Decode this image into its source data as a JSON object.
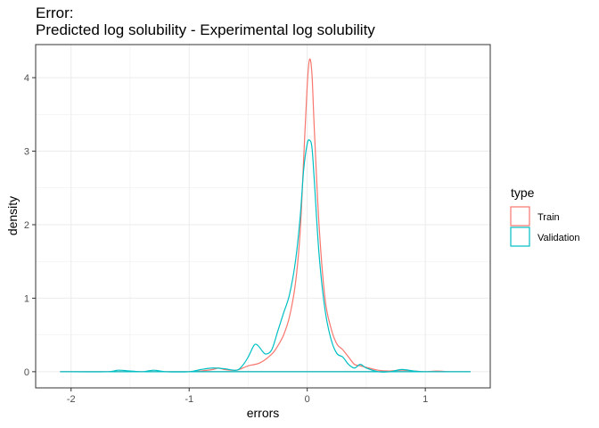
{
  "chart_data": {
    "type": "area",
    "title": [
      "Error:",
      "Predicted log solubility - Experimental log solubility"
    ],
    "xlabel": "errors",
    "ylabel": "density",
    "xlim": [
      -2.3,
      1.55
    ],
    "ylim": [
      -0.22,
      4.45
    ],
    "x_ticks": [
      -2,
      -1,
      0,
      1
    ],
    "y_ticks": [
      0,
      1,
      2,
      3,
      4
    ],
    "grid": true,
    "legend": {
      "title": "type",
      "position": "right",
      "entries": [
        {
          "name": "Train",
          "color": "#F8766D"
        },
        {
          "name": "Validation",
          "color": "#00BFC4"
        }
      ]
    },
    "series": [
      {
        "name": "Train",
        "color": "#F8766D",
        "points": [
          [
            -2.09,
            0
          ],
          [
            -1.7,
            0
          ],
          [
            -1.3,
            0
          ],
          [
            -1.0,
            0
          ],
          [
            -0.9,
            0.01
          ],
          [
            -0.8,
            0.03
          ],
          [
            -0.75,
            0.05
          ],
          [
            -0.7,
            0.03
          ],
          [
            -0.6,
            0.02
          ],
          [
            -0.5,
            0.08
          ],
          [
            -0.4,
            0.12
          ],
          [
            -0.3,
            0.24
          ],
          [
            -0.25,
            0.35
          ],
          [
            -0.2,
            0.5
          ],
          [
            -0.15,
            0.75
          ],
          [
            -0.1,
            1.2
          ],
          [
            -0.06,
            1.9
          ],
          [
            -0.03,
            2.9
          ],
          [
            0.0,
            3.9
          ],
          [
            0.02,
            4.25
          ],
          [
            0.04,
            4.05
          ],
          [
            0.06,
            3.3
          ],
          [
            0.1,
            2.0
          ],
          [
            0.15,
            1.0
          ],
          [
            0.2,
            0.6
          ],
          [
            0.25,
            0.38
          ],
          [
            0.3,
            0.3
          ],
          [
            0.35,
            0.2
          ],
          [
            0.4,
            0.1
          ],
          [
            0.45,
            0.08
          ],
          [
            0.5,
            0.06
          ],
          [
            0.6,
            0.02
          ],
          [
            0.7,
            0.01
          ],
          [
            0.8,
            0.02
          ],
          [
            0.9,
            0.01
          ],
          [
            1.0,
            0.0
          ],
          [
            1.1,
            0.01
          ],
          [
            1.2,
            0.0
          ],
          [
            1.38,
            0
          ]
        ]
      },
      {
        "name": "Validation",
        "color": "#00BFC4",
        "points": [
          [
            -2.09,
            0
          ],
          [
            -1.7,
            0
          ],
          [
            -1.6,
            0.02
          ],
          [
            -1.5,
            0.01
          ],
          [
            -1.4,
            0
          ],
          [
            -1.3,
            0.02
          ],
          [
            -1.2,
            0
          ],
          [
            -1.0,
            0
          ],
          [
            -0.9,
            0.03
          ],
          [
            -0.8,
            0.05
          ],
          [
            -0.7,
            0.04
          ],
          [
            -0.6,
            0.02
          ],
          [
            -0.55,
            0.08
          ],
          [
            -0.5,
            0.2
          ],
          [
            -0.45,
            0.36
          ],
          [
            -0.42,
            0.36
          ],
          [
            -0.38,
            0.28
          ],
          [
            -0.35,
            0.24
          ],
          [
            -0.3,
            0.3
          ],
          [
            -0.25,
            0.55
          ],
          [
            -0.2,
            0.8
          ],
          [
            -0.15,
            1.05
          ],
          [
            -0.1,
            1.5
          ],
          [
            -0.06,
            2.1
          ],
          [
            -0.03,
            2.75
          ],
          [
            0.0,
            3.1
          ],
          [
            0.02,
            3.15
          ],
          [
            0.04,
            3.05
          ],
          [
            0.06,
            2.6
          ],
          [
            0.1,
            1.6
          ],
          [
            0.15,
            0.85
          ],
          [
            0.2,
            0.45
          ],
          [
            0.25,
            0.25
          ],
          [
            0.3,
            0.2
          ],
          [
            0.35,
            0.1
          ],
          [
            0.4,
            0.05
          ],
          [
            0.45,
            0.1
          ],
          [
            0.5,
            0.05
          ],
          [
            0.6,
            0.0
          ],
          [
            0.7,
            0.0
          ],
          [
            0.8,
            0.03
          ],
          [
            0.9,
            0.01
          ],
          [
            1.0,
            0.0
          ],
          [
            1.2,
            0.0
          ],
          [
            1.38,
            0
          ]
        ]
      }
    ]
  }
}
